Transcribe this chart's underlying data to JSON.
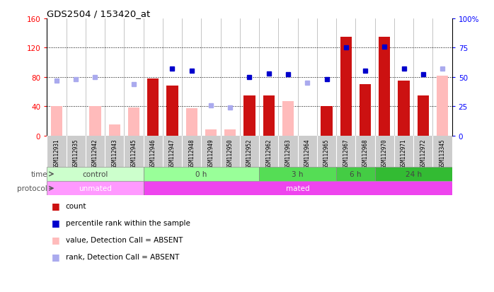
{
  "title": "GDS2504 / 153420_at",
  "samples": [
    "GSM112931",
    "GSM112935",
    "GSM112942",
    "GSM112943",
    "GSM112945",
    "GSM112946",
    "GSM112947",
    "GSM112948",
    "GSM112949",
    "GSM112950",
    "GSM112952",
    "GSM112962",
    "GSM112963",
    "GSM112964",
    "GSM112965",
    "GSM112967",
    "GSM112968",
    "GSM112970",
    "GSM112971",
    "GSM112972",
    "GSM113345"
  ],
  "count_values": [
    null,
    null,
    null,
    null,
    null,
    78,
    68,
    null,
    null,
    null,
    55,
    55,
    null,
    null,
    40,
    135,
    70,
    135,
    75,
    55,
    null
  ],
  "count_absent": [
    40,
    null,
    40,
    15,
    38,
    null,
    null,
    37,
    8,
    8,
    null,
    null,
    47,
    null,
    null,
    null,
    null,
    null,
    null,
    null,
    82
  ],
  "percentile_present": [
    null,
    null,
    null,
    null,
    null,
    null,
    57,
    55,
    null,
    null,
    50,
    53,
    52,
    null,
    48,
    75,
    55,
    76,
    57,
    52,
    null
  ],
  "percentile_absent": [
    47,
    48,
    50,
    null,
    44,
    null,
    null,
    null,
    26,
    24,
    null,
    null,
    null,
    45,
    null,
    null,
    null,
    null,
    null,
    null,
    57
  ],
  "time_groups": [
    {
      "label": "control",
      "start": 0,
      "end": 5,
      "color": "#ccffcc"
    },
    {
      "label": "0 h",
      "start": 5,
      "end": 11,
      "color": "#99ff99"
    },
    {
      "label": "3 h",
      "start": 11,
      "end": 15,
      "color": "#55dd55"
    },
    {
      "label": "6 h",
      "start": 15,
      "end": 17,
      "color": "#44cc44"
    },
    {
      "label": "24 h",
      "start": 17,
      "end": 21,
      "color": "#33bb33"
    }
  ],
  "protocol_groups": [
    {
      "label": "unmated",
      "start": 0,
      "end": 5,
      "color": "#ff99ff"
    },
    {
      "label": "mated",
      "start": 5,
      "end": 21,
      "color": "#ee44ee"
    }
  ],
  "ylim_left": [
    0,
    160
  ],
  "ylim_right": [
    0,
    100
  ],
  "yticks_left": [
    0,
    40,
    80,
    120,
    160
  ],
  "yticks_right": [
    0,
    25,
    50,
    75,
    100
  ],
  "ytick_labels_left": [
    "0",
    "40",
    "80",
    "120",
    "160"
  ],
  "ytick_labels_right": [
    "0",
    "25",
    "50",
    "75",
    "100%"
  ],
  "count_color": "#cc1111",
  "absent_bar_color": "#ffbbbb",
  "present_dot_color": "#0000cc",
  "absent_dot_color": "#aaaaee",
  "sample_bg_color": "#cccccc",
  "bg_color": "#ffffff"
}
